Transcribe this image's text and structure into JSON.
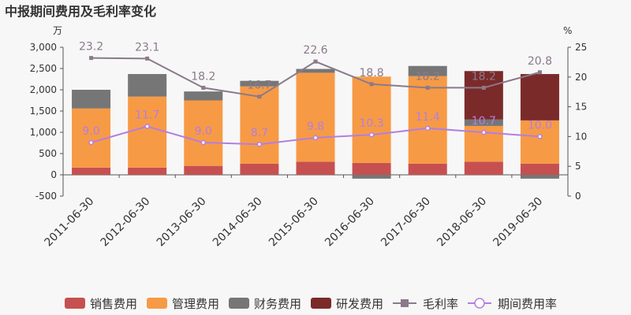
{
  "chart_data": {
    "type": "bar",
    "title": "中报期间费用及毛利率变化",
    "left_unit": "万",
    "right_unit": "%",
    "categories": [
      "2011-06-30",
      "2012-06-30",
      "2013-06-30",
      "2014-06-30",
      "2015-06-30",
      "2016-06-30",
      "2017-06-30",
      "2018-06-30",
      "2019-06-30"
    ],
    "left_axis": {
      "min": -500,
      "max": 3000,
      "ticks": [
        -500,
        0,
        500,
        1000,
        1500,
        2000,
        2500,
        3000
      ],
      "tick_labels": [
        "-500",
        "0",
        "500",
        "1,000",
        "1,500",
        "2,000",
        "2,500",
        "3,000"
      ]
    },
    "right_axis": {
      "min": 0,
      "max": 25,
      "ticks": [
        0,
        5,
        10,
        15,
        20,
        25
      ],
      "tick_labels": [
        "0",
        "5",
        "10",
        "15",
        "20",
        "25"
      ]
    },
    "bar_series": [
      {
        "name": "销售费用",
        "color": "#c65050",
        "values": [
          170,
          170,
          210,
          260,
          310,
          280,
          260,
          310,
          260
        ]
      },
      {
        "name": "管理费用",
        "color": "#f79a45",
        "values": [
          1390,
          1670,
          1540,
          1820,
          2090,
          2030,
          2060,
          840,
          1020
        ]
      },
      {
        "name": "财务费用",
        "color": "#767676",
        "values": [
          440,
          530,
          210,
          130,
          90,
          -90,
          240,
          150,
          -90
        ]
      },
      {
        "name": "研发费用",
        "color": "#7b2a2a",
        "values": [
          0,
          0,
          0,
          0,
          0,
          0,
          0,
          1140,
          1090
        ]
      }
    ],
    "line_series": [
      {
        "name": "毛利率",
        "color": "#8a7a8a",
        "marker": "square",
        "values": [
          23.2,
          23.1,
          18.2,
          16.7,
          22.6,
          18.8,
          18.2,
          18.2,
          20.8
        ],
        "labels": [
          "23.2",
          "23.1",
          "18.2",
          "16.7",
          "22.6",
          "18.8",
          "18.2",
          "18.2",
          "20.8"
        ]
      },
      {
        "name": "期间费用率",
        "color": "#b37ee0",
        "marker": "circle",
        "values": [
          9.0,
          11.7,
          9.0,
          8.7,
          9.8,
          10.3,
          11.4,
          10.7,
          10.0
        ],
        "labels": [
          "9.0",
          "11.7",
          "9.0",
          "8.7",
          "9.8",
          "10.3",
          "11.4",
          "10.7",
          "10.0"
        ]
      }
    ],
    "legend": {
      "position": "bottom",
      "items": [
        "销售费用",
        "管理费用",
        "财务费用",
        "研发费用",
        "毛利率",
        "期间费用率"
      ]
    }
  }
}
